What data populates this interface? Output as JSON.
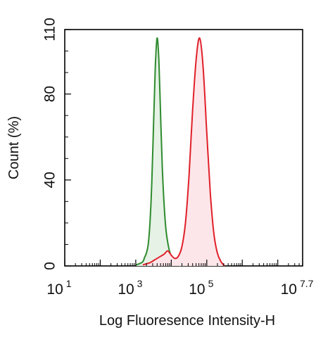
{
  "chart_data": {
    "type": "area",
    "xlabel": "Log Fluoresence Intensity-H",
    "ylabel": "Count  (%)",
    "xscale": "log10",
    "xlim": [
      10,
      50118723
    ],
    "ylim": [
      0,
      110
    ],
    "grid": false,
    "y_ticks": [
      {
        "value": 0,
        "label": "0"
      },
      {
        "value": 40,
        "label": "40"
      },
      {
        "value": 80,
        "label": "80"
      },
      {
        "value": 110,
        "label": "110"
      }
    ],
    "x_ticks": [
      {
        "value": 10,
        "base": "10",
        "exp": "1"
      },
      {
        "value": 1000,
        "base": "10",
        "exp": "3"
      },
      {
        "value": 100000,
        "base": "10",
        "exp": "5"
      },
      {
        "value": 50118723,
        "base": "10",
        "exp": "7.7"
      }
    ],
    "series": [
      {
        "color": "#2e8b2e",
        "fill": "#e6f2e6",
        "x": [
          1000,
          1259,
          1585,
          1778,
          1995,
          2239,
          2512,
          2818,
          3162,
          3548,
          3981,
          4467,
          5012,
          5623,
          6310,
          7079,
          7943,
          8913,
          10000,
          11220,
          12589,
          14125,
          15849,
          17783
        ],
        "y": [
          0.5,
          1,
          2,
          4,
          6,
          10,
          20,
          38,
          65,
          92,
          106,
          96,
          70,
          45,
          28,
          17,
          11,
          7,
          4.5,
          3,
          2,
          1.5,
          0.8,
          0
        ]
      },
      {
        "color": "#e0202a",
        "fill": "#fde6e9",
        "x": [
          1585,
          1995,
          2512,
          3162,
          3981,
          5012,
          6310,
          7943,
          10000,
          12589,
          15849,
          19953,
          25119,
          31623,
          39811,
          50119,
          63096,
          79433,
          100000,
          125893,
          158489,
          199526,
          251189,
          316228
        ],
        "y": [
          0.5,
          1,
          1.5,
          2.5,
          3.5,
          4.5,
          5.5,
          7,
          5,
          3.5,
          4.5,
          9,
          20,
          42,
          72,
          96,
          106,
          92,
          62,
          34,
          15,
          6,
          2,
          0
        ]
      }
    ]
  }
}
